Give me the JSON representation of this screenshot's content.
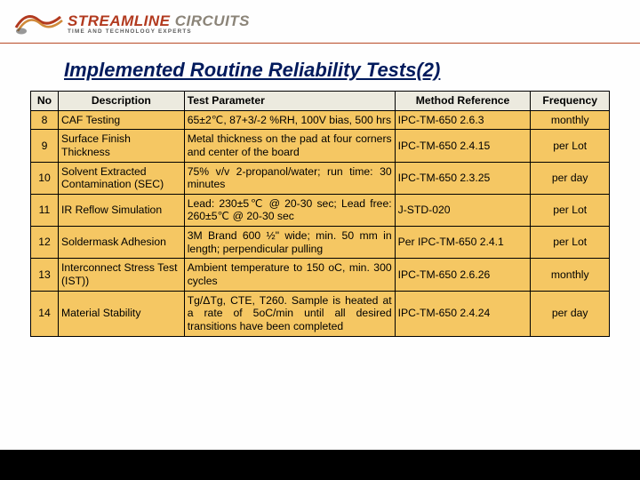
{
  "brand": {
    "name_a": "STREAMLINE",
    "name_b": "CIRCUITS",
    "tagline": "TIME AND TECHNOLOGY EXPERTS",
    "color_a": "#b23a1f",
    "color_b": "#8b8478",
    "tagline_color": "#5a5a5a",
    "main_fontsize": "17px",
    "sub_fontsize": "6.3px"
  },
  "title": {
    "text": "Implemented Routine Reliability Tests(2)",
    "color": "#001a5c",
    "fontsize": "22px"
  },
  "table": {
    "header_bg": "#eceadf",
    "body_bg": "#f5c763",
    "font_size": "12.2px",
    "columns": [
      "No",
      "Description",
      "Test Parameter",
      "Method Reference",
      "Frequency"
    ],
    "rows": [
      {
        "no": "8",
        "desc": "CAF Testing",
        "param": "65±2℃, 87+3/-2 %RH, 100V bias, 500 hrs",
        "method": "IPC-TM-650 2.6.3",
        "freq": "monthly"
      },
      {
        "no": "9",
        "desc": " Surface Finish Thickness",
        "param": "Metal thickness on the pad at four corners and center of the board",
        "method": "IPC-TM-650 2.4.15",
        "freq": "per Lot"
      },
      {
        "no": "10",
        "desc": "Solvent Extracted Contamination (SEC)",
        "param": "75% v/v 2-propanol/water; run time: 30 minutes",
        "method": "IPC-TM-650 2.3.25",
        "freq": "per day"
      },
      {
        "no": "11",
        "desc": "IR Reflow Simulation",
        "param": " Lead: 230±5℃ @ 20-30 sec; Lead free: 260±5℃ @ 20-30 sec",
        "method": "J-STD-020",
        "freq": "per Lot"
      },
      {
        "no": "12",
        "desc": " Soldermask Adhesion",
        "param": "3M Brand 600 ½\" wide; min. 50 mm in length; perpendicular pulling",
        "method": "Per IPC-TM-650 2.4.1",
        "freq": "per Lot"
      },
      {
        "no": "13",
        "desc": "Interconnect Stress Test (IST))",
        "param": " Ambient temperature to 150 oC, min. 300 cycles",
        "method": "IPC-TM-650 2.6.26",
        "freq": "monthly"
      },
      {
        "no": "14",
        "desc": "Material Stability",
        "param": " Tg/ΔTg, CTE, T260. Sample is heated at a rate of 5oC/min until all desired transitions have been completed",
        "method": "IPC-TM-650 2.4.24",
        "freq": "per day"
      }
    ]
  }
}
